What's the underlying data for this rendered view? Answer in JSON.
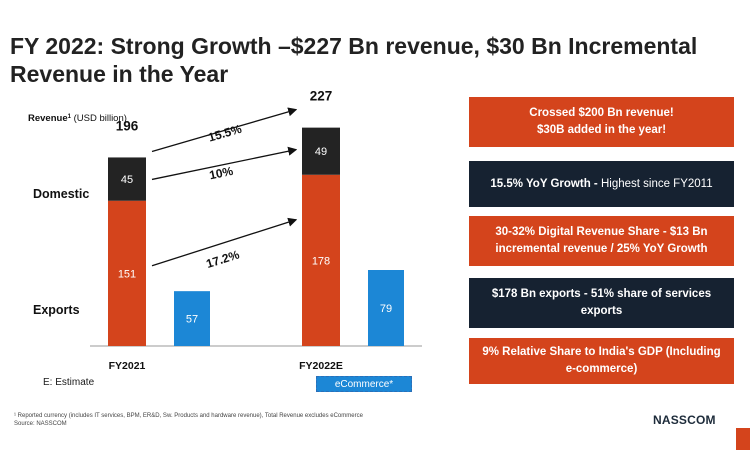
{
  "title": "FY 2022: Strong Growth –$227 Bn revenue, $30 Bn Incremental Revenue in the Year",
  "chart_data": {
    "type": "bar",
    "ylabel_main": "Revenue",
    "ylabel_sup": "1",
    "ylabel_unit": "(USD billion)",
    "categories": [
      "FY2021",
      "FY2022E"
    ],
    "series": [
      {
        "name": "Exports",
        "values": [
          151,
          178
        ],
        "color": "#d4441c"
      },
      {
        "name": "Domestic",
        "values": [
          45,
          49
        ],
        "color": "#232323"
      }
    ],
    "totals": [
      196,
      227
    ],
    "ecommerce": {
      "name": "eCommerce*",
      "values": [
        57,
        79
      ],
      "color": "#1c87d6"
    },
    "row_labels": [
      "Domestic",
      "Exports"
    ],
    "growth": [
      {
        "label": "15.5%",
        "segment": "total"
      },
      {
        "label": "10%",
        "segment": "domestic"
      },
      {
        "label": "17.2%",
        "segment": "exports"
      }
    ],
    "ylim": [
      0,
      240
    ]
  },
  "estimate_note": "E: Estimate",
  "ecommerce_label": "eCommerce*",
  "boxes": [
    {
      "line1": "Crossed $200 Bn revenue!",
      "line2": "$30B added in the year!",
      "style": "orange"
    },
    {
      "line1": "15.5% YoY Growth - ",
      "line1b": "Highest since FY2011",
      "style": "dark"
    },
    {
      "line1": "30-32% Digital Revenue Share - $13 Bn",
      "line2": "incremental revenue / 25% YoY Growth",
      "style": "orange"
    },
    {
      "line1": "$178 Bn exports - 51% share of services",
      "line2": "exports",
      "style": "dark"
    },
    {
      "line1": "9% Relative Share to India's GDP (Including",
      "line2": "e-commerce)",
      "style": "orange"
    }
  ],
  "footnote": {
    "line1": "¹ Reported currency (includes IT services, BPM, ER&D, Sw. Products and hardware revenue), Total Revenue excludes eCommerce",
    "line2": "Source: NASSCOM"
  },
  "logo": "NASSCOM",
  "colors": {
    "orange": "#d4441c",
    "dark": "#162231",
    "blue": "#1c87d6",
    "domestic": "#232323"
  }
}
